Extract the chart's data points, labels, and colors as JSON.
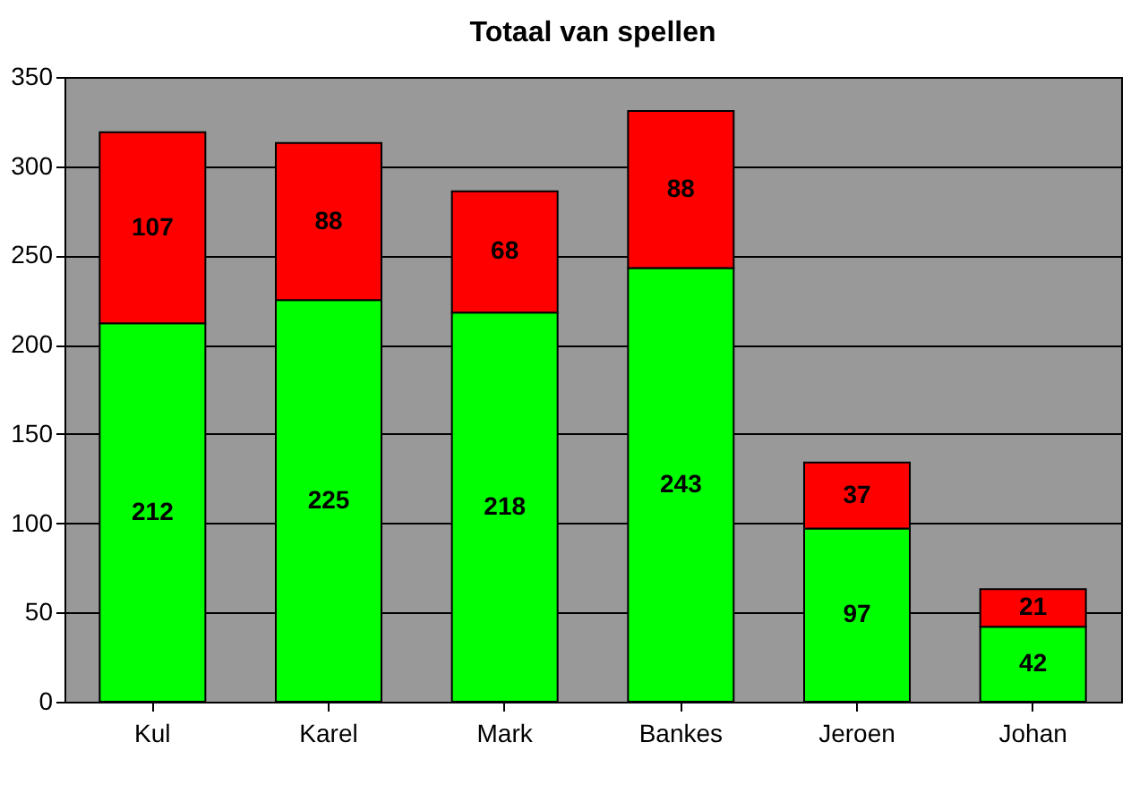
{
  "chart_data": {
    "type": "bar",
    "title": "Totaal van spellen",
    "stacked": true,
    "data_labels": true,
    "grid": "y",
    "categories": [
      "Kul",
      "Karel",
      "Mark",
      "Bankes",
      "Jeroen",
      "Johan"
    ],
    "series": [
      {
        "color": "#00ff00",
        "values": [
          212,
          225,
          218,
          243,
          97,
          42
        ]
      },
      {
        "color": "#ff0000",
        "values": [
          107,
          88,
          68,
          88,
          37,
          21
        ]
      }
    ],
    "ylim": [
      0,
      350
    ],
    "yticks": [
      0,
      50,
      100,
      150,
      200,
      250,
      300,
      350
    ]
  }
}
